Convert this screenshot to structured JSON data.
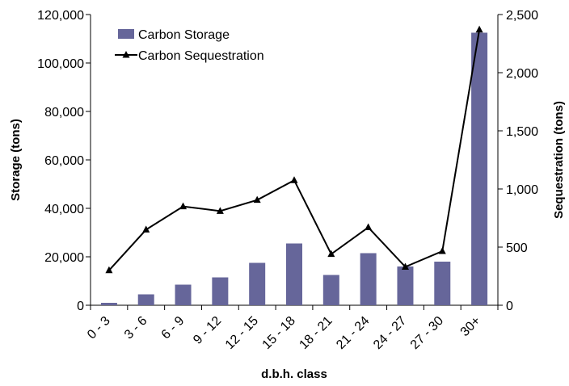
{
  "chart_data": {
    "type": "bar",
    "categories": [
      "0 - 3",
      "3 - 6",
      "6 - 9",
      "9 - 12",
      "12 - 15",
      "15 - 18",
      "18 - 21",
      "21 - 24",
      "24 - 27",
      "27 - 30",
      "30+"
    ],
    "series": [
      {
        "name": "Carbon Storage",
        "type": "bar",
        "axis": "left",
        "color": "#66669A",
        "values": [
          1000,
          4500,
          8500,
          11500,
          17500,
          25500,
          12500,
          21500,
          16000,
          18000,
          112500
        ]
      },
      {
        "name": "Carbon Sequestration",
        "type": "line",
        "axis": "right",
        "color": "#000000",
        "marker": "triangle",
        "values": [
          300,
          650,
          850,
          810,
          905,
          1075,
          440,
          670,
          330,
          465,
          2370
        ]
      }
    ],
    "xlabel": "d.b.h. class",
    "ylabel": "Storage (tons)",
    "y2label": "Sequestration (tons)",
    "ylim": [
      0,
      120000
    ],
    "y2lim": [
      0,
      2500
    ],
    "yticks": [
      "0",
      "20,000",
      "40,000",
      "60,000",
      "80,000",
      "100,000",
      "120,000"
    ],
    "y2ticks": [
      "0",
      "500",
      "1,000",
      "1,500",
      "2,000",
      "2,500"
    ],
    "grid": false,
    "legend_position": "top-left"
  }
}
